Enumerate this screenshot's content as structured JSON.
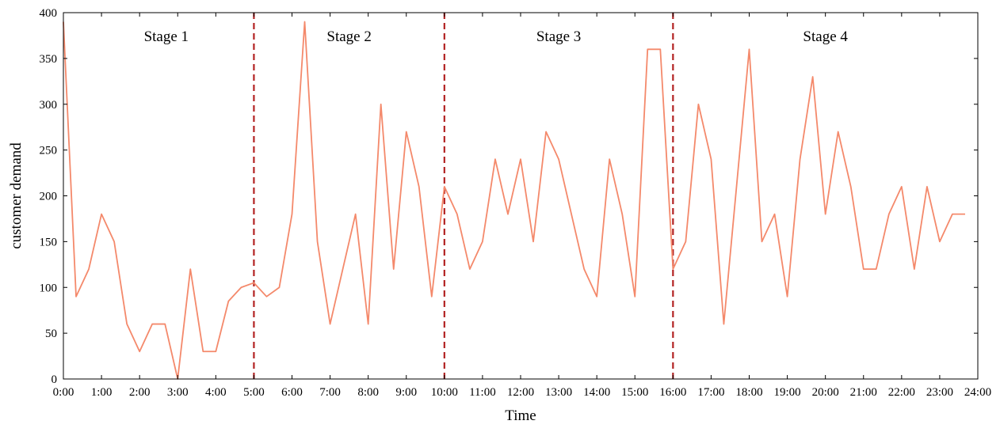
{
  "chart_data": {
    "type": "line",
    "xlabel": "Time",
    "ylabel": "customer demand",
    "x_ticks": [
      "0:00",
      "1:00",
      "2:00",
      "3:00",
      "4:00",
      "5:00",
      "6:00",
      "7:00",
      "8:00",
      "9:00",
      "10:00",
      "11:00",
      "12:00",
      "13:00",
      "14:00",
      "15:00",
      "16:00",
      "17:00",
      "18:00",
      "19:00",
      "20:00",
      "21:00",
      "22:00",
      "23:00",
      "24:00"
    ],
    "y_ticks": [
      0,
      50,
      100,
      150,
      200,
      250,
      300,
      350,
      400
    ],
    "xlim": [
      0,
      24
    ],
    "ylim": [
      0,
      400
    ],
    "grid": false,
    "series": [
      {
        "color": "#f4896b",
        "x": [
          0,
          0.333,
          0.667,
          1.0,
          1.333,
          1.667,
          2.0,
          2.333,
          2.667,
          3.0,
          3.333,
          3.667,
          4.0,
          4.333,
          4.667,
          5.0,
          5.333,
          5.667,
          6.0,
          6.333,
          6.667,
          7.0,
          7.333,
          7.667,
          8.0,
          8.333,
          8.667,
          9.0,
          9.333,
          9.667,
          10.0,
          10.333,
          10.667,
          11.0,
          11.333,
          11.667,
          12.0,
          12.333,
          12.667,
          13.0,
          13.333,
          13.667,
          14.0,
          14.333,
          14.667,
          15.0,
          15.333,
          15.667,
          16.0,
          16.333,
          16.667,
          17.0,
          17.333,
          17.667,
          18.0,
          18.333,
          18.667,
          19.0,
          19.333,
          19.667,
          20.0,
          20.333,
          20.667,
          21.0,
          21.333,
          21.667,
          22.0,
          22.333,
          22.667,
          23.0,
          23.333,
          23.667
        ],
        "values": [
          390,
          90,
          120,
          180,
          150,
          60,
          30,
          60,
          60,
          0,
          120,
          30,
          30,
          85,
          100,
          105,
          90,
          100,
          180,
          390,
          150,
          60,
          120,
          180,
          60,
          300,
          120,
          270,
          210,
          90,
          210,
          180,
          120,
          150,
          240,
          180,
          240,
          150,
          270,
          240,
          180,
          120,
          90,
          240,
          180,
          90,
          360,
          360,
          120,
          150,
          300,
          240,
          60,
          210,
          360,
          150,
          180,
          90,
          240,
          330,
          180,
          270,
          210,
          120,
          120,
          180,
          210,
          120,
          210,
          150,
          180,
          180
        ]
      }
    ],
    "stage_boundaries": [
      5,
      10,
      16
    ],
    "stage_line_color": "#b22222",
    "stages": [
      {
        "label": "Stage 1",
        "center": 2.7
      },
      {
        "label": "Stage 2",
        "center": 7.5
      },
      {
        "label": "Stage 3",
        "center": 13.0
      },
      {
        "label": "Stage 4",
        "center": 20.0
      }
    ]
  }
}
